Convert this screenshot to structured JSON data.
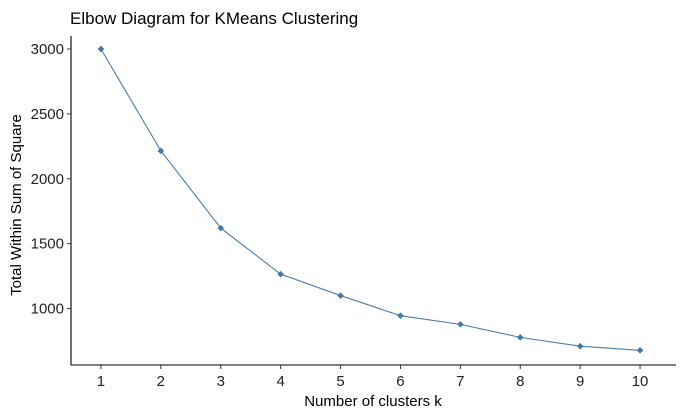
{
  "chart_data": {
    "type": "line",
    "title": "Elbow Diagram for KMeans Clustering",
    "xlabel": "Number of clusters k",
    "ylabel": "Total Within Sum of Square",
    "x": [
      1,
      2,
      3,
      4,
      5,
      6,
      7,
      8,
      9,
      10
    ],
    "series": [
      {
        "name": "Total Within Sum of Square",
        "values": [
          3000,
          2215,
          1620,
          1265,
          1100,
          945,
          878,
          778,
          710,
          678
        ]
      }
    ],
    "xlim": [
      0.5,
      10.6
    ],
    "ylim": [
      565,
      3100
    ],
    "x_ticks": [
      "1",
      "2",
      "3",
      "4",
      "5",
      "6",
      "7",
      "8",
      "9",
      "10"
    ],
    "y_ticks": [
      1000,
      1500,
      2000,
      2500,
      3000
    ],
    "y_tick_labels": [
      "1000",
      "1500",
      "2000",
      "2500",
      "3000"
    ],
    "grid": false,
    "legend": "none",
    "line_color": "#4C7CA8",
    "point_color": "#4478A8"
  }
}
